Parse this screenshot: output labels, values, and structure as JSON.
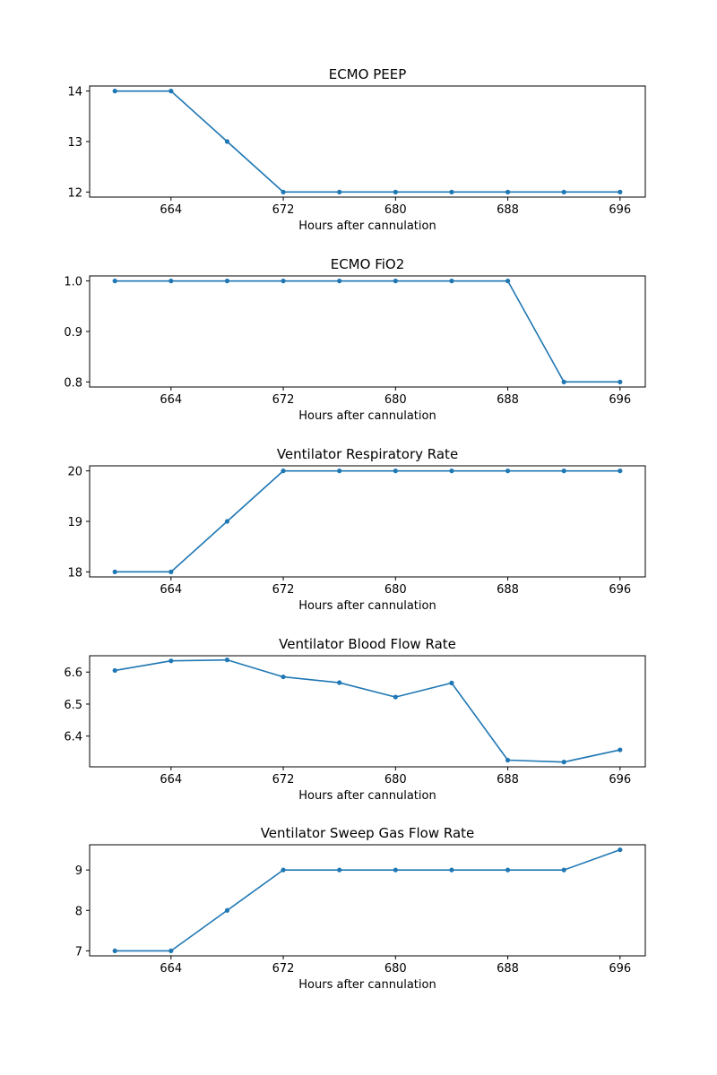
{
  "colors": {
    "line": "#1f77b4",
    "axis": "#000000",
    "background": "#ffffff"
  },
  "chart_data": [
    {
      "type": "line",
      "title": "ECMO PEEP",
      "xlabel": "Hours after cannulation",
      "ylabel": "",
      "x": [
        660,
        664,
        668,
        672,
        676,
        680,
        684,
        688,
        692,
        696
      ],
      "xticks": [
        664,
        672,
        680,
        688,
        696
      ],
      "xtick_labels": [
        "664",
        "672",
        "680",
        "688",
        "696"
      ],
      "xlim": [
        658.2,
        697.8
      ],
      "yticks": [
        12,
        13,
        14
      ],
      "ytick_labels": [
        "12",
        "13",
        "14"
      ],
      "ylim": [
        11.9,
        14.1
      ],
      "series": [
        {
          "values": [
            14,
            14,
            13,
            12,
            12,
            12,
            12,
            12,
            12,
            12
          ]
        }
      ],
      "grid": false,
      "legend": "none"
    },
    {
      "type": "line",
      "title": "ECMO FiO2",
      "xlabel": "Hours after cannulation",
      "ylabel": "",
      "x": [
        660,
        664,
        668,
        672,
        676,
        680,
        684,
        688,
        692,
        696
      ],
      "xticks": [
        664,
        672,
        680,
        688,
        696
      ],
      "xtick_labels": [
        "664",
        "672",
        "680",
        "688",
        "696"
      ],
      "xlim": [
        658.2,
        697.8
      ],
      "yticks": [
        0.8,
        0.9,
        1.0
      ],
      "ytick_labels": [
        "0.8",
        "0.9",
        "1.0"
      ],
      "ylim": [
        0.79,
        1.01
      ],
      "series": [
        {
          "values": [
            1.0,
            1.0,
            1.0,
            1.0,
            1.0,
            1.0,
            1.0,
            1.0,
            0.8,
            0.8
          ]
        }
      ],
      "grid": false,
      "legend": "none"
    },
    {
      "type": "line",
      "title": "Ventilator Respiratory Rate",
      "xlabel": "Hours after cannulation",
      "ylabel": "",
      "x": [
        660,
        664,
        668,
        672,
        676,
        680,
        684,
        688,
        692,
        696
      ],
      "xticks": [
        664,
        672,
        680,
        688,
        696
      ],
      "xtick_labels": [
        "664",
        "672",
        "680",
        "688",
        "696"
      ],
      "xlim": [
        658.2,
        697.8
      ],
      "yticks": [
        18,
        19,
        20
      ],
      "ytick_labels": [
        "18",
        "19",
        "20"
      ],
      "ylim": [
        17.9,
        20.1
      ],
      "series": [
        {
          "values": [
            18,
            18,
            19,
            20,
            20,
            20,
            20,
            20,
            20,
            20
          ]
        }
      ],
      "grid": false,
      "legend": "none"
    },
    {
      "type": "line",
      "title": "Ventilator Blood Flow Rate",
      "xlabel": "Hours after cannulation",
      "ylabel": "",
      "x": [
        660,
        664,
        668,
        672,
        676,
        680,
        684,
        688,
        692,
        696
      ],
      "xticks": [
        664,
        672,
        680,
        688,
        696
      ],
      "xtick_labels": [
        "664",
        "672",
        "680",
        "688",
        "696"
      ],
      "xlim": [
        658.2,
        697.8
      ],
      "yticks": [
        6.4,
        6.5,
        6.6
      ],
      "ytick_labels": [
        "6.4",
        "6.5",
        "6.6"
      ],
      "ylim": [
        6.304,
        6.651
      ],
      "series": [
        {
          "values": [
            6.605,
            6.635,
            6.638,
            6.585,
            6.567,
            6.522,
            6.566,
            6.325,
            6.319,
            6.357
          ]
        }
      ],
      "grid": false,
      "legend": "none"
    },
    {
      "type": "line",
      "title": "Ventilator Sweep Gas Flow Rate",
      "xlabel": "Hours after cannulation",
      "ylabel": "",
      "x": [
        660,
        664,
        668,
        672,
        676,
        680,
        684,
        688,
        692,
        696
      ],
      "xticks": [
        664,
        672,
        680,
        688,
        696
      ],
      "xtick_labels": [
        "664",
        "672",
        "680",
        "688",
        "696"
      ],
      "xlim": [
        658.2,
        697.8
      ],
      "yticks": [
        7,
        8,
        9
      ],
      "ytick_labels": [
        "7",
        "8",
        "9"
      ],
      "ylim": [
        6.876,
        9.624
      ],
      "series": [
        {
          "values": [
            7,
            7,
            8,
            9,
            9,
            9,
            9,
            9,
            9,
            9.5
          ]
        }
      ],
      "grid": false,
      "legend": "none"
    }
  ]
}
